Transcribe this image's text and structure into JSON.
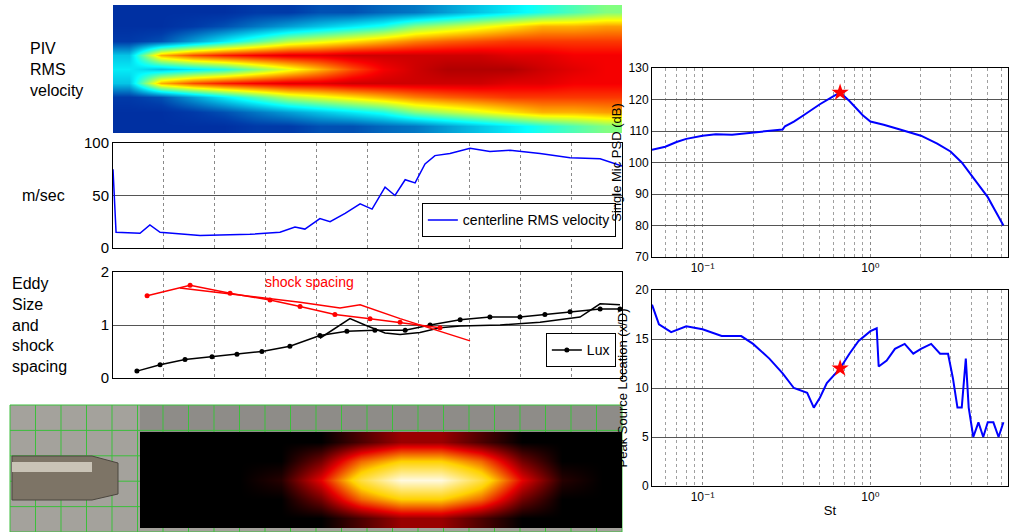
{
  "chart_data": [
    {
      "type": "heatmap",
      "title": "PIV RMS velocity",
      "x": [
        0,
        1,
        2,
        3,
        4,
        5,
        6,
        7,
        8,
        9,
        10,
        11,
        12,
        13,
        14,
        15
      ],
      "y": [
        -4,
        -3,
        -2,
        -1,
        0,
        1,
        2,
        3,
        4
      ],
      "z": [
        [
          10,
          10,
          10,
          10,
          12,
          12,
          15,
          15,
          18,
          20,
          25,
          30,
          35,
          40,
          45,
          50
        ],
        [
          10,
          10,
          12,
          15,
          20,
          25,
          30,
          35,
          40,
          50,
          55,
          60,
          65,
          70,
          70,
          72
        ],
        [
          12,
          15,
          25,
          35,
          45,
          55,
          60,
          65,
          70,
          75,
          78,
          80,
          82,
          82,
          82,
          82
        ],
        [
          30,
          70,
          80,
          85,
          88,
          90,
          90,
          92,
          92,
          92,
          92,
          92,
          90,
          90,
          88,
          88
        ],
        [
          35,
          30,
          35,
          40,
          50,
          60,
          70,
          80,
          88,
          92,
          95,
          95,
          95,
          92,
          90,
          88
        ],
        [
          30,
          70,
          80,
          85,
          88,
          90,
          90,
          92,
          92,
          92,
          92,
          92,
          90,
          90,
          88,
          88
        ],
        [
          12,
          15,
          25,
          35,
          45,
          55,
          60,
          65,
          70,
          75,
          78,
          80,
          82,
          82,
          82,
          82
        ],
        [
          10,
          10,
          12,
          15,
          20,
          25,
          30,
          35,
          40,
          50,
          55,
          60,
          65,
          70,
          70,
          72
        ],
        [
          10,
          10,
          10,
          10,
          12,
          12,
          15,
          15,
          18,
          20,
          25,
          30,
          35,
          40,
          45,
          50
        ]
      ],
      "xlim": [
        -0.5,
        15.5
      ],
      "ylim": [
        -4.5,
        4.5
      ],
      "zlim": [
        0,
        100
      ],
      "color": "Jet",
      "tick_labels": false
    },
    {
      "type": "line",
      "ylabel": "m/sec",
      "xlim": [
        0,
        20
      ],
      "xticks": [
        0,
        2,
        4,
        6,
        8,
        10,
        12,
        14,
        16,
        18,
        20
      ],
      "ylim": [
        0,
        100
      ],
      "yticks": [
        0,
        50,
        100
      ],
      "grid": true,
      "tick_labels": "y",
      "legend": "lower right",
      "series": [
        {
          "name": "centerline RMS velocity",
          "color": "#0000ff",
          "x": [
            0,
            0.12,
            1.06,
            1.45,
            1.85,
            3.42,
            5.38,
            6.56,
            7.15,
            7.54,
            8.13,
            8.53,
            9.12,
            9.71,
            10.18,
            10.69,
            11.08,
            11.48,
            11.87,
            12.26,
            12.65,
            13.24,
            14.03,
            14.81,
            15.6,
            16.78,
            17.96,
            19.14,
            20
          ],
          "values": [
            75,
            15,
            14,
            22,
            15,
            12,
            13,
            15,
            20,
            18,
            28,
            25,
            33,
            42,
            37,
            58,
            50,
            65,
            62,
            80,
            88,
            90,
            95,
            92,
            93,
            90,
            86,
            85,
            78
          ]
        }
      ]
    },
    {
      "type": "line",
      "ylabel": "Eddy Size and shock spacing",
      "xlim": [
        0,
        20
      ],
      "xticks": [
        0,
        2,
        4,
        6,
        8,
        10,
        12,
        14,
        16,
        18,
        20
      ],
      "ylim": [
        0,
        2
      ],
      "yticks": [
        0,
        1,
        2
      ],
      "grid": true,
      "tick_labels": "y",
      "legend": "lower right",
      "annotations": [
        {
          "text": "shock spacing",
          "x": 7.74,
          "y": 1.81,
          "color": "#ff0000"
        }
      ],
      "series": [
        {
          "name": "Lux",
          "color": "#000000",
          "marker": "circle",
          "x": [
            0.94,
            1.85,
            2.83,
            3.89,
            4.87,
            5.85,
            6.95,
            8.13,
            9.19,
            10.29,
            11.48,
            12.46,
            13.64,
            14.81,
            15.99,
            16.97,
            17.96,
            19.14,
            19.92
          ],
          "values": [
            0.13,
            0.25,
            0.35,
            0.4,
            0.45,
            0.5,
            0.6,
            0.8,
            0.88,
            0.9,
            0.9,
            1.0,
            1.1,
            1.15,
            1.15,
            1.2,
            1.25,
            1.3,
            1.3
          ]
        },
        {
          "color": "#000000",
          "x": [
            8.13,
            9.31,
            9.9,
            10.69,
            11.28,
            12.06,
            12.85,
            13.64,
            15.21,
            16.78,
            18.35,
            19.14,
            19.92
          ],
          "values": [
            0.75,
            1.12,
            1.0,
            0.85,
            0.82,
            0.86,
            0.95,
            0.98,
            1.0,
            1.05,
            1.15,
            1.4,
            1.38
          ]
        },
        {
          "color": "#ff0000",
          "marker": "circle",
          "x": [
            1.34,
            3.03,
            4.6,
            6.17,
            7.35,
            8.72,
            10.1,
            11.28,
            12.85
          ],
          "values": [
            1.55,
            1.75,
            1.6,
            1.47,
            1.35,
            1.2,
            1.12,
            1.05,
            0.95
          ]
        },
        {
          "color": "#ff0000",
          "x": [
            2.63,
            5.38,
            7.35,
            8.92,
            9.71,
            11.28,
            14.03
          ],
          "values": [
            1.7,
            1.55,
            1.43,
            1.32,
            1.38,
            1.12,
            0.7
          ]
        }
      ]
    },
    {
      "type": "heatmap",
      "x": [
        0,
        1,
        2,
        3,
        4,
        5,
        6,
        7,
        8,
        9,
        10,
        11
      ],
      "y": [
        0,
        1,
        2,
        3,
        4
      ],
      "z": [
        [
          0,
          0,
          0,
          0,
          0,
          10,
          20,
          20,
          10,
          0,
          0,
          0
        ],
        [
          0,
          0,
          0,
          0,
          15,
          45,
          60,
          60,
          45,
          15,
          0,
          0
        ],
        [
          0,
          0,
          0,
          5,
          30,
          70,
          95,
          95,
          70,
          30,
          5,
          0
        ],
        [
          0,
          0,
          0,
          0,
          15,
          45,
          60,
          60,
          45,
          15,
          0,
          0
        ],
        [
          0,
          0,
          0,
          0,
          0,
          10,
          20,
          20,
          10,
          0,
          0,
          0
        ]
      ],
      "xlim": [
        -0.5,
        11.5
      ],
      "ylim": [
        -0.5,
        4.5
      ],
      "zlim": [
        0,
        100
      ],
      "color": "Hot",
      "tick_labels": false
    },
    {
      "type": "line",
      "ylabel": "Single Mic PSD (dB)",
      "log": "x",
      "xlim": [
        0.05,
        6.6
      ],
      "xticks": [
        {
          "value": 0.1,
          "label": "10⁻¹"
        },
        {
          "value": 1,
          "label": "10⁰"
        }
      ],
      "ylim": [
        70,
        130
      ],
      "yticks": [
        70,
        80,
        90,
        100,
        110,
        120,
        130
      ],
      "grid": true,
      "series": [
        {
          "color": "#0000ff",
          "x": [
            0.05,
            0.06,
            0.07,
            0.08,
            0.1,
            0.12,
            0.15,
            0.2,
            0.25,
            0.3,
            0.31,
            0.35,
            0.4,
            0.5,
            0.6,
            0.66,
            0.75,
            0.9,
            1.0,
            1.2,
            1.5,
            2,
            2.5,
            3,
            3.5,
            4,
            5,
            5.5,
            6.2
          ],
          "values": [
            104,
            105,
            106.5,
            107.5,
            108.5,
            109,
            108.8,
            109.5,
            110,
            110.5,
            111.5,
            113,
            115,
            118.5,
            121,
            122.2,
            119.5,
            115,
            113,
            112,
            110.5,
            108.5,
            106,
            103.5,
            100,
            96,
            89,
            85,
            80
          ]
        },
        {
          "type": "scatter",
          "marker": "star",
          "color": "#ff0000",
          "x": [
            0.66
          ],
          "values": [
            122.2
          ]
        }
      ]
    },
    {
      "type": "line",
      "xlabel": "St",
      "ylabel": "Peak Source Location (x/D)",
      "log": "x",
      "xlim": [
        0.05,
        6.6
      ],
      "xticks": [
        {
          "value": 0.1,
          "label": "10⁻¹"
        },
        {
          "value": 1,
          "label": "10⁰"
        }
      ],
      "ylim": [
        0,
        20
      ],
      "yticks": [
        0,
        5,
        10,
        15,
        20
      ],
      "grid": true,
      "series": [
        {
          "color": "#0000ff",
          "x": [
            0.05,
            0.055,
            0.065,
            0.08,
            0.1,
            0.13,
            0.17,
            0.2,
            0.25,
            0.3,
            0.35,
            0.42,
            0.46,
            0.5,
            0.55,
            0.66,
            0.75,
            0.85,
            1.0,
            1.09,
            1.12,
            1.25,
            1.4,
            1.6,
            1.8,
            2.0,
            2.3,
            2.6,
            2.9,
            3.1,
            3.3,
            3.5,
            3.7,
            3.85,
            4.1,
            4.4,
            4.7,
            5.0,
            5.4,
            5.8,
            6.2
          ],
          "values": [
            18.5,
            16.5,
            15.7,
            16.3,
            16,
            15.3,
            15.3,
            14.5,
            13,
            11.5,
            10,
            9.5,
            8,
            9,
            10.5,
            12,
            13.5,
            14.8,
            15.8,
            16.1,
            12.2,
            12.8,
            14,
            14.5,
            13.5,
            14,
            14.5,
            13.5,
            13.5,
            11,
            8,
            8,
            13,
            8,
            5,
            6.5,
            5,
            6.5,
            6.5,
            5,
            6.5
          ]
        },
        {
          "type": "scatter",
          "marker": "star",
          "color": "#ff0000",
          "x": [
            0.66
          ],
          "values": [
            12
          ]
        }
      ]
    }
  ]
}
